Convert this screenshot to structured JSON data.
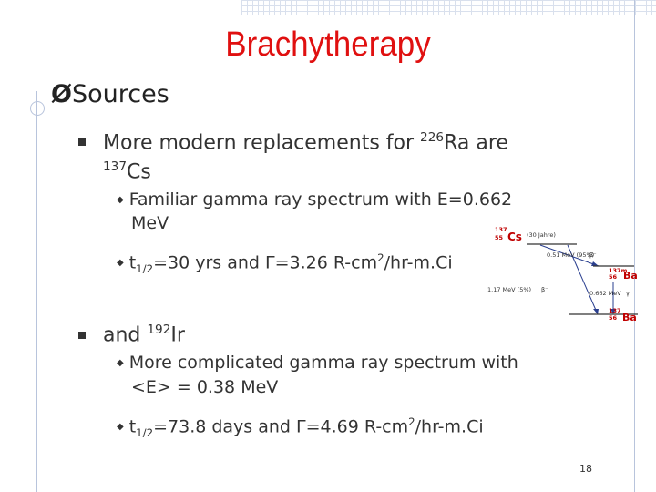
{
  "title": "Brachytherapy",
  "level1": {
    "arrow": "Ø",
    "text": "Sources"
  },
  "bullet1": {
    "text_a": "More modern replacements for ",
    "sup_a": "226",
    "text_b": "Ra are",
    "sup_b": "137",
    "text_c": "Cs",
    "sub1": {
      "line1": "Familiar gamma ray spectrum with E=0.662",
      "line2": "MeV"
    },
    "sub2": {
      "t": "t",
      "sub": "1/2",
      "mid": "=30 yrs and ",
      "gamma": "Γ",
      "val": "=3.26 R-cm",
      "sup": "2",
      "tail": "/hr-m.Ci"
    }
  },
  "bullet2": {
    "text_a": "and ",
    "sup_a": "192",
    "text_b": "Ir",
    "sub1": {
      "line1": "More complicated gamma ray spectrum with",
      "line2": "<E> = 0.38 MeV"
    },
    "sub2": {
      "t": "t",
      "sub": "1/2",
      "mid": "=73.8 days and ",
      "gamma": "Γ",
      "val": "=4.69 R-cm",
      "sup": "2",
      "tail": "/hr-m.Ci"
    }
  },
  "diagram": {
    "parent_mass": "137",
    "parent_z": "55",
    "parent_sym": "Cs",
    "half_life": "(30 Jahre)",
    "beta1": "0.51 MeV (95%)",
    "beta1_sym": "β⁻",
    "beta2": "1.17 MeV (5%)",
    "beta2_sym": "β⁻",
    "meta_mass": "137m",
    "meta_z": "56",
    "meta_sym": "Ba",
    "gamma": "0.662 MeV",
    "gamma_sym": "γ",
    "daughter_mass": "137",
    "daughter_z": "56",
    "daughter_sym": "Ba"
  },
  "page_number": "18"
}
